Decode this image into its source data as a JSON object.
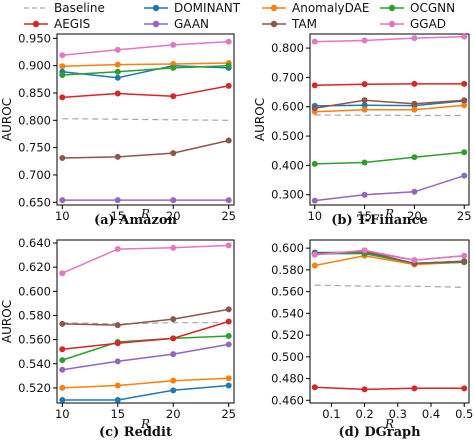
{
  "legend": {
    "items": [
      {
        "name": "Baseline",
        "color": "#a6a6a6",
        "dashed": true
      },
      {
        "name": "DOMINANT",
        "color": "#1f77b4"
      },
      {
        "name": "AnomalyDAE",
        "color": "#ff7f0e"
      },
      {
        "name": "OCGNN",
        "color": "#2ca02c"
      },
      {
        "name": "AEGIS",
        "color": "#d62728"
      },
      {
        "name": "GAAN",
        "color": "#9467bd"
      },
      {
        "name": "TAM",
        "color": "#8c564b"
      },
      {
        "name": "GGAD",
        "color": "#e377c2"
      }
    ]
  },
  "chart_data": [
    {
      "type": "line",
      "caption": "(a)  Amazon",
      "xlabel": "R",
      "ylabel": "AUROC",
      "x": [
        10,
        15,
        20,
        25
      ],
      "xticks": [
        "10",
        "15",
        "20",
        "25"
      ],
      "xlim": [
        10,
        25
      ],
      "yticks": [
        "0.650",
        "0.700",
        "0.750",
        "0.800",
        "0.850",
        "0.900",
        "0.950"
      ],
      "ylim": [
        0.645,
        0.958
      ],
      "series": [
        {
          "name": "Baseline",
          "values": [
            0.803,
            0.802,
            0.801,
            0.8
          ]
        },
        {
          "name": "DOMINANT",
          "values": [
            0.889,
            0.878,
            0.9,
            0.896
          ]
        },
        {
          "name": "AnomalyDAE",
          "values": [
            0.899,
            0.902,
            0.903,
            0.905
          ]
        },
        {
          "name": "OCGNN",
          "values": [
            0.883,
            0.889,
            0.896,
            0.9
          ]
        },
        {
          "name": "AEGIS",
          "values": [
            0.842,
            0.849,
            0.844,
            0.863
          ]
        },
        {
          "name": "GAAN",
          "values": [
            0.654,
            0.654,
            0.654,
            0.654
          ]
        },
        {
          "name": "TAM",
          "values": [
            0.731,
            0.733,
            0.74,
            0.763
          ]
        },
        {
          "name": "GGAD",
          "values": [
            0.919,
            0.929,
            0.938,
            0.944
          ]
        }
      ]
    },
    {
      "type": "line",
      "caption": "(b)  T-Finance",
      "xlabel": "R",
      "ylabel": "AUROC",
      "x": [
        10,
        15,
        20,
        25
      ],
      "xticks": [
        "10",
        "15",
        "20",
        "25"
      ],
      "xlim": [
        10,
        25
      ],
      "yticks": [
        "0.300",
        "0.400",
        "0.500",
        "0.600",
        "0.700",
        "0.800"
      ],
      "ylim": [
        0.265,
        0.848
      ],
      "series": [
        {
          "name": "Baseline",
          "values": [
            0.572,
            0.571,
            0.57,
            0.57
          ]
        },
        {
          "name": "DOMINANT",
          "values": [
            0.603,
            0.605,
            0.604,
            0.62
          ]
        },
        {
          "name": "AnomalyDAE",
          "values": [
            0.583,
            0.59,
            0.59,
            0.605
          ]
        },
        {
          "name": "OCGNN",
          "values": [
            0.405,
            0.41,
            0.428,
            0.445
          ]
        },
        {
          "name": "AEGIS",
          "values": [
            0.673,
            0.677,
            0.678,
            0.678
          ]
        },
        {
          "name": "GAAN",
          "values": [
            0.28,
            0.3,
            0.31,
            0.365
          ]
        },
        {
          "name": "TAM",
          "values": [
            0.595,
            0.622,
            0.61,
            0.622
          ]
        },
        {
          "name": "GGAD",
          "values": [
            0.822,
            0.826,
            0.834,
            0.839
          ]
        }
      ]
    },
    {
      "type": "line",
      "caption": "(c)  Reddit",
      "xlabel": "R",
      "ylabel": "AUROC",
      "x": [
        10,
        15,
        20,
        25
      ],
      "xticks": [
        "10",
        "15",
        "20",
        "25"
      ],
      "xlim": [
        10,
        25
      ],
      "yticks": [
        "0.520",
        "0.540",
        "0.560",
        "0.580",
        "0.600",
        "0.620",
        "0.640"
      ],
      "ylim": [
        0.5075,
        0.6425
      ],
      "series": [
        {
          "name": "Baseline",
          "values": [
            0.574,
            0.573,
            0.574,
            0.574
          ]
        },
        {
          "name": "DOMINANT",
          "values": [
            0.51,
            0.51,
            0.518,
            0.522
          ]
        },
        {
          "name": "AnomalyDAE",
          "values": [
            0.52,
            0.522,
            0.526,
            0.528
          ]
        },
        {
          "name": "OCGNN",
          "values": [
            0.543,
            0.558,
            0.561,
            0.563
          ]
        },
        {
          "name": "AEGIS",
          "values": [
            0.552,
            0.557,
            0.561,
            0.575
          ]
        },
        {
          "name": "GAAN",
          "values": [
            0.535,
            0.542,
            0.548,
            0.556
          ]
        },
        {
          "name": "TAM",
          "values": [
            0.573,
            0.572,
            0.577,
            0.585
          ]
        },
        {
          "name": "GGAD",
          "values": [
            0.615,
            0.635,
            0.636,
            0.638
          ]
        }
      ]
    },
    {
      "type": "line",
      "caption": "(d)  DGraph",
      "xlabel": "R",
      "ylabel": "",
      "x": [
        0.05,
        0.2,
        0.35,
        0.5
      ],
      "xticks": [
        "0.1",
        "0.2",
        "0.3",
        "0.4",
        "0.5"
      ],
      "xtick_values": [
        0.1,
        0.2,
        0.3,
        0.4,
        0.5
      ],
      "xlim": [
        0.05,
        0.5
      ],
      "yticks": [
        "0.460",
        "0.480",
        "0.500",
        "0.520",
        "0.540",
        "0.560",
        "0.580",
        "0.600"
      ],
      "ylim": [
        0.4575,
        0.6075
      ],
      "series": [
        {
          "name": "Baseline",
          "values": [
            0.566,
            0.565,
            0.565,
            0.564
          ]
        },
        {
          "name": "DOMINANT",
          "values": [
            0.596,
            0.596,
            0.586,
            0.588
          ]
        },
        {
          "name": "AnomalyDAE",
          "values": [
            0.584,
            0.593,
            0.585,
            0.587
          ]
        },
        {
          "name": "OCGNN",
          "values": [
            0.595,
            0.595,
            0.586,
            0.587
          ]
        },
        {
          "name": "AEGIS",
          "values": [
            0.472,
            0.47,
            0.471,
            0.471
          ]
        },
        {
          "name": "GAAN",
          "values": [
            0.594,
            0.597,
            0.589,
            0.593
          ]
        },
        {
          "name": "TAM",
          "values": [
            0.595,
            0.597,
            0.586,
            0.588
          ]
        },
        {
          "name": "GGAD",
          "values": [
            0.594,
            0.598,
            0.589,
            0.593
          ]
        }
      ]
    }
  ]
}
